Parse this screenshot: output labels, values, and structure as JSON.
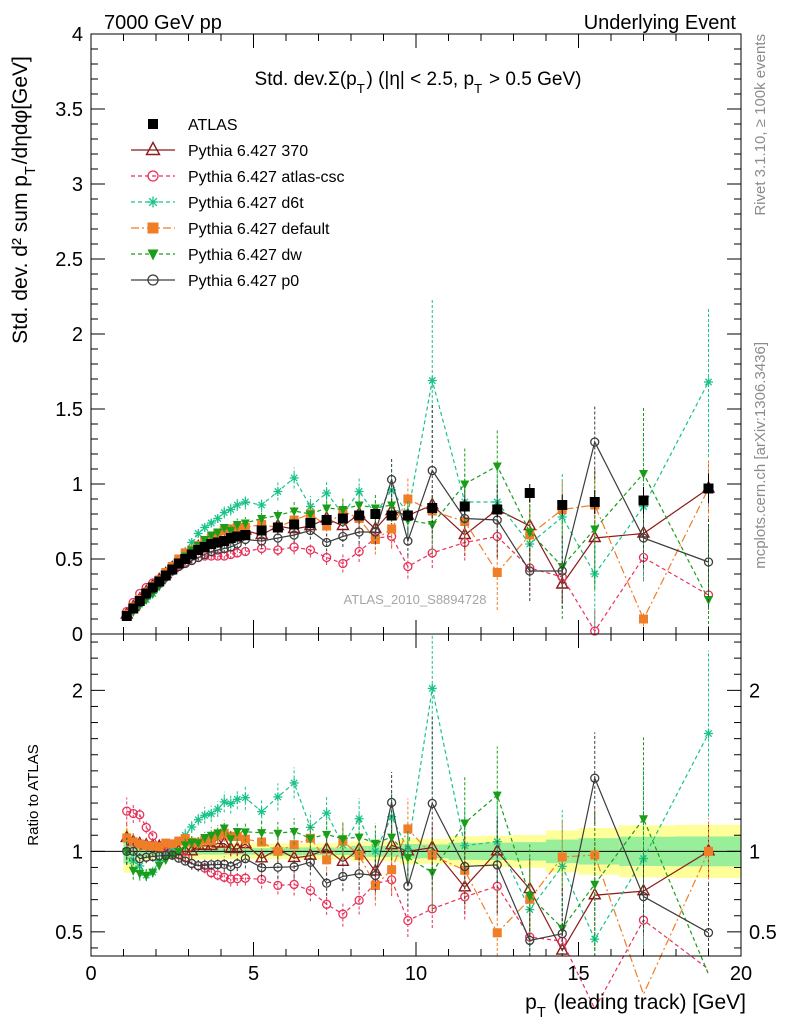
{
  "header": {
    "left": "7000 GeV pp",
    "right": "Underlying Event",
    "side_top": "Rivet 3.1.10, ≥ 100k events",
    "side_bottom": "mcplots.cern.ch [arXiv:1306.3436]"
  },
  "chart_data": [
    {
      "type": "scatter",
      "panel": "main",
      "title": "Std. dev.Σ(p_T) (|η| < 2.5, p_T > 0.5 GeV)",
      "xlabel": "p_T (leading track) [GeV]",
      "ylabel": "Std. dev. d² sum p_T/dηdφ[GeV]",
      "watermark": "ATLAS_2010_S8894728",
      "xlim": [
        0,
        20
      ],
      "ylim": [
        0,
        4
      ],
      "x_ticks": [
        0,
        5,
        10,
        15,
        20
      ],
      "y_ticks": [
        0,
        0.5,
        1,
        1.5,
        2,
        2.5,
        3,
        3.5,
        4
      ],
      "y_tick_labels": [
        "0",
        "0.5",
        "1",
        "1.5",
        "2",
        "2.5",
        "3",
        "3.5",
        "4"
      ],
      "legend_position": "top-left",
      "x": [
        1.1,
        1.3,
        1.5,
        1.7,
        1.9,
        2.1,
        2.3,
        2.5,
        2.7,
        2.9,
        3.1,
        3.3,
        3.5,
        3.7,
        3.9,
        4.1,
        4.3,
        4.5,
        4.75,
        5.25,
        5.75,
        6.25,
        6.75,
        7.25,
        7.75,
        8.25,
        8.75,
        9.25,
        9.75,
        10.5,
        11.5,
        12.5,
        13.5,
        14.5,
        15.5,
        17,
        19
      ],
      "series": [
        {
          "name": "ATLAS",
          "color": "#000000",
          "marker": "square",
          "values": [
            0.12,
            0.17,
            0.22,
            0.27,
            0.31,
            0.35,
            0.39,
            0.43,
            0.47,
            0.5,
            0.53,
            0.56,
            0.58,
            0.6,
            0.61,
            0.62,
            0.64,
            0.65,
            0.66,
            0.69,
            0.71,
            0.73,
            0.74,
            0.76,
            0.77,
            0.79,
            0.8,
            0.79,
            0.79,
            0.84,
            0.85,
            0.83,
            0.94,
            0.86,
            0.88,
            0.89,
            0.97
          ],
          "errors": [
            0.01,
            0.01,
            0.01,
            0.01,
            0.01,
            0.01,
            0.01,
            0.01,
            0.01,
            0.01,
            0.01,
            0.01,
            0.01,
            0.01,
            0.01,
            0.01,
            0.01,
            0.01,
            0.01,
            0.01,
            0.02,
            0.02,
            0.02,
            0.02,
            0.02,
            0.03,
            0.03,
            0.03,
            0.04,
            0.04,
            0.05,
            0.05,
            0.06,
            0.07,
            0.08,
            0.09,
            0.1
          ]
        },
        {
          "name": "Pythia 6.427 370",
          "color": "#8b1a1a",
          "marker": "triangle-open",
          "dash": "solid",
          "values": [
            0.13,
            0.18,
            0.23,
            0.28,
            0.32,
            0.36,
            0.4,
            0.44,
            0.47,
            0.5,
            0.53,
            0.58,
            0.6,
            0.62,
            0.64,
            0.65,
            0.65,
            0.66,
            0.69,
            0.66,
            0.72,
            0.7,
            0.72,
            0.77,
            0.72,
            0.8,
            0.7,
            0.82,
            0.79,
            0.86,
            0.66,
            0.83,
            0.72,
            0.33,
            0.64,
            0.67,
            0.97
          ],
          "errors": [
            0.01,
            0.01,
            0.01,
            0.01,
            0.01,
            0.01,
            0.01,
            0.01,
            0.01,
            0.01,
            0.02,
            0.02,
            0.02,
            0.02,
            0.02,
            0.03,
            0.03,
            0.03,
            0.04,
            0.04,
            0.05,
            0.05,
            0.06,
            0.06,
            0.07,
            0.08,
            0.08,
            0.1,
            0.12,
            0.12,
            0.14,
            0.16,
            0.18,
            0.12,
            0.3,
            0.25,
            0.16
          ]
        },
        {
          "name": "Pythia 6.427 atlas-csc",
          "color": "#e8315a",
          "marker": "circle-open",
          "dash": "4,3",
          "values": [
            0.15,
            0.21,
            0.27,
            0.31,
            0.34,
            0.36,
            0.39,
            0.43,
            0.46,
            0.48,
            0.49,
            0.51,
            0.52,
            0.52,
            0.52,
            0.52,
            0.53,
            0.54,
            0.55,
            0.57,
            0.56,
            0.58,
            0.56,
            0.51,
            0.47,
            0.55,
            0.64,
            0.65,
            0.45,
            0.54,
            0.61,
            0.65,
            0.44,
            0.38,
            0.02,
            0.51,
            0.26
          ],
          "errors": [
            0.01,
            0.01,
            0.01,
            0.01,
            0.01,
            0.01,
            0.01,
            0.01,
            0.01,
            0.01,
            0.02,
            0.02,
            0.02,
            0.02,
            0.02,
            0.02,
            0.03,
            0.03,
            0.03,
            0.04,
            0.04,
            0.05,
            0.05,
            0.05,
            0.06,
            0.07,
            0.08,
            0.08,
            0.08,
            0.1,
            0.12,
            0.14,
            0.15,
            0.15,
            0.15,
            0.15,
            0.1
          ]
        },
        {
          "name": "Pythia 6.427 d6t",
          "color": "#18c38a",
          "marker": "star",
          "dash": "4,3",
          "values": [
            0.12,
            0.16,
            0.2,
            0.23,
            0.27,
            0.33,
            0.38,
            0.44,
            0.5,
            0.55,
            0.61,
            0.67,
            0.71,
            0.74,
            0.77,
            0.81,
            0.83,
            0.86,
            0.88,
            0.86,
            0.95,
            1.04,
            0.85,
            0.94,
            0.8,
            0.95,
            0.8,
            0.96,
            0.8,
            1.69,
            0.88,
            0.88,
            0.6,
            0.78,
            0.4,
            0.85,
            1.68
          ],
          "errors": [
            0.01,
            0.01,
            0.01,
            0.01,
            0.01,
            0.01,
            0.01,
            0.01,
            0.01,
            0.02,
            0.02,
            0.02,
            0.03,
            0.03,
            0.03,
            0.04,
            0.04,
            0.04,
            0.05,
            0.05,
            0.06,
            0.07,
            0.07,
            0.08,
            0.08,
            0.1,
            0.1,
            0.12,
            0.13,
            0.55,
            0.2,
            0.2,
            0.25,
            0.3,
            0.35,
            0.5,
            0.5
          ]
        },
        {
          "name": "Pythia 6.427 default",
          "color": "#f07d27",
          "marker": "square",
          "dash": "8,3,2,3",
          "values": [
            0.13,
            0.18,
            0.23,
            0.28,
            0.32,
            0.36,
            0.41,
            0.45,
            0.5,
            0.54,
            0.56,
            0.59,
            0.62,
            0.64,
            0.67,
            0.69,
            0.7,
            0.71,
            0.71,
            0.73,
            0.71,
            0.76,
            0.8,
            0.72,
            0.82,
            0.77,
            0.63,
            0.7,
            0.9,
            0.82,
            0.75,
            0.41,
            0.66,
            0.83,
            0.86,
            0.1,
            0.97
          ],
          "errors": [
            0.01,
            0.01,
            0.01,
            0.01,
            0.01,
            0.01,
            0.01,
            0.01,
            0.01,
            0.01,
            0.02,
            0.02,
            0.02,
            0.02,
            0.03,
            0.03,
            0.03,
            0.03,
            0.04,
            0.04,
            0.05,
            0.06,
            0.06,
            0.07,
            0.08,
            0.09,
            0.1,
            0.12,
            0.15,
            0.15,
            0.2,
            0.25,
            0.2,
            0.2,
            0.25,
            0.05,
            0.2
          ]
        },
        {
          "name": "Pythia 6.427 dw",
          "color": "#1a9e1a",
          "marker": "triangle-down",
          "dash": "4,3",
          "values": [
            0.12,
            0.15,
            0.19,
            0.23,
            0.27,
            0.32,
            0.37,
            0.42,
            0.47,
            0.52,
            0.56,
            0.59,
            0.63,
            0.66,
            0.68,
            0.71,
            0.69,
            0.73,
            0.74,
            0.77,
            0.79,
            0.82,
            0.8,
            0.84,
            0.83,
            0.86,
            0.84,
            0.86,
            0.76,
            0.73,
            1.0,
            1.12,
            0.68,
            0.45,
            0.7,
            1.07,
            0.23
          ],
          "errors": [
            0.01,
            0.01,
            0.01,
            0.01,
            0.01,
            0.01,
            0.01,
            0.01,
            0.01,
            0.02,
            0.02,
            0.02,
            0.02,
            0.03,
            0.03,
            0.03,
            0.04,
            0.04,
            0.04,
            0.05,
            0.05,
            0.06,
            0.07,
            0.07,
            0.08,
            0.09,
            0.1,
            0.11,
            0.13,
            0.2,
            0.25,
            0.25,
            0.3,
            0.35,
            0.4,
            0.45,
            0.5
          ]
        },
        {
          "name": "Pythia 6.427 p0",
          "color": "#3d3d3d",
          "marker": "circle-open",
          "dash": "solid",
          "values": [
            0.12,
            0.17,
            0.21,
            0.26,
            0.3,
            0.34,
            0.38,
            0.42,
            0.45,
            0.47,
            0.49,
            0.51,
            0.53,
            0.55,
            0.56,
            0.57,
            0.58,
            0.6,
            0.63,
            0.62,
            0.64,
            0.66,
            0.69,
            0.61,
            0.65,
            0.68,
            0.68,
            1.03,
            0.62,
            1.09,
            0.77,
            0.76,
            0.42,
            0.42,
            1.28,
            0.64,
            0.48
          ],
          "errors": [
            0.01,
            0.01,
            0.01,
            0.01,
            0.01,
            0.01,
            0.01,
            0.01,
            0.01,
            0.01,
            0.02,
            0.02,
            0.02,
            0.02,
            0.02,
            0.03,
            0.03,
            0.03,
            0.04,
            0.04,
            0.05,
            0.05,
            0.06,
            0.06,
            0.07,
            0.08,
            0.08,
            0.15,
            0.1,
            0.45,
            0.2,
            0.25,
            0.2,
            0.25,
            0.25,
            0.2,
            0.3
          ]
        }
      ]
    },
    {
      "type": "scatter",
      "panel": "ratio",
      "ylabel": "Ratio to ATLAS",
      "xlabel": "p_T (leading track) [GeV]",
      "xlim": [
        0,
        20
      ],
      "ylim": [
        0.35,
        2.35
      ],
      "x_ticks": [
        0,
        5,
        10,
        15,
        20
      ],
      "y_ticks": [
        0.5,
        1,
        2
      ],
      "y_tick_labels": [
        "0.5",
        "1",
        "2"
      ],
      "reference": 1,
      "band_colors": {
        "stat": "#99ee99",
        "total": "#ffff99"
      }
    }
  ]
}
